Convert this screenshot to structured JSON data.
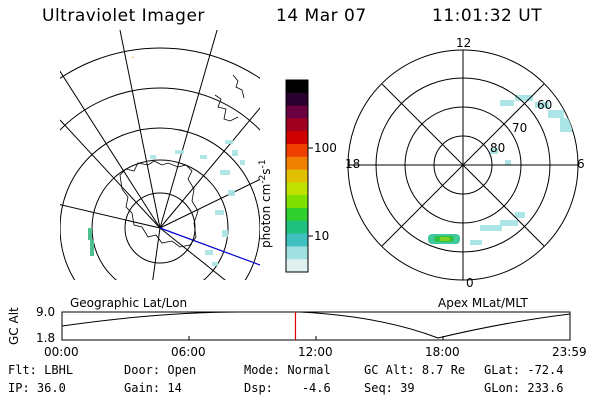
{
  "header": {
    "instrument": "Ultraviolet Imager",
    "date": "14 Mar 07",
    "time": "11:01:32 UT"
  },
  "colorbar": {
    "unit_label": "photon cm",
    "unit_exp1": "-2",
    "unit_s": "s",
    "unit_exp2": "-1",
    "ticks": [
      "100",
      "10"
    ],
    "colors": [
      "#000000",
      "#2a0030",
      "#6a0040",
      "#a00020",
      "#d00000",
      "#f04000",
      "#f08000",
      "#e0c000",
      "#c0e000",
      "#80e000",
      "#30d030",
      "#20c080",
      "#40c0c0",
      "#a0e0e0",
      "#e0f0f0"
    ]
  },
  "geo_panel": {
    "label": "Geographic Lat/Lon"
  },
  "apex_panel": {
    "label": "Apex MLat/MLT",
    "mlt_labels": {
      "top": "12",
      "left": "18",
      "right": "6",
      "bottom": "0"
    },
    "lat_labels": [
      "60",
      "70",
      "80"
    ]
  },
  "altitude_plot": {
    "ylabel": "GC Alt",
    "ytick_top": "9.0",
    "ytick_bottom": "1.8",
    "xticks": [
      "00:00",
      "06:00",
      "12:00",
      "18:00",
      "23:59"
    ],
    "marker_time_hours": 11.03
  },
  "footer": {
    "filter_label": "Flt:",
    "filter_value": "LBHL",
    "door_label": "Door:",
    "door_value": "Open",
    "mode_label": "Mode:",
    "mode_value": "Normal",
    "gcalt_label": "GC Alt:",
    "gcalt_value": "8.7 Re",
    "glat_label": "GLat:",
    "glat_value": "-72.4",
    "ip_label": "IP:",
    "ip_value": "36.0",
    "gain_label": "Gain:",
    "gain_value": "14",
    "dsp_label": "Dsp:",
    "dsp_value": "-4.6",
    "seq_label": "Seq:",
    "seq_value": "39",
    "glon_label": "GLon:",
    "glon_value": "233.6"
  }
}
